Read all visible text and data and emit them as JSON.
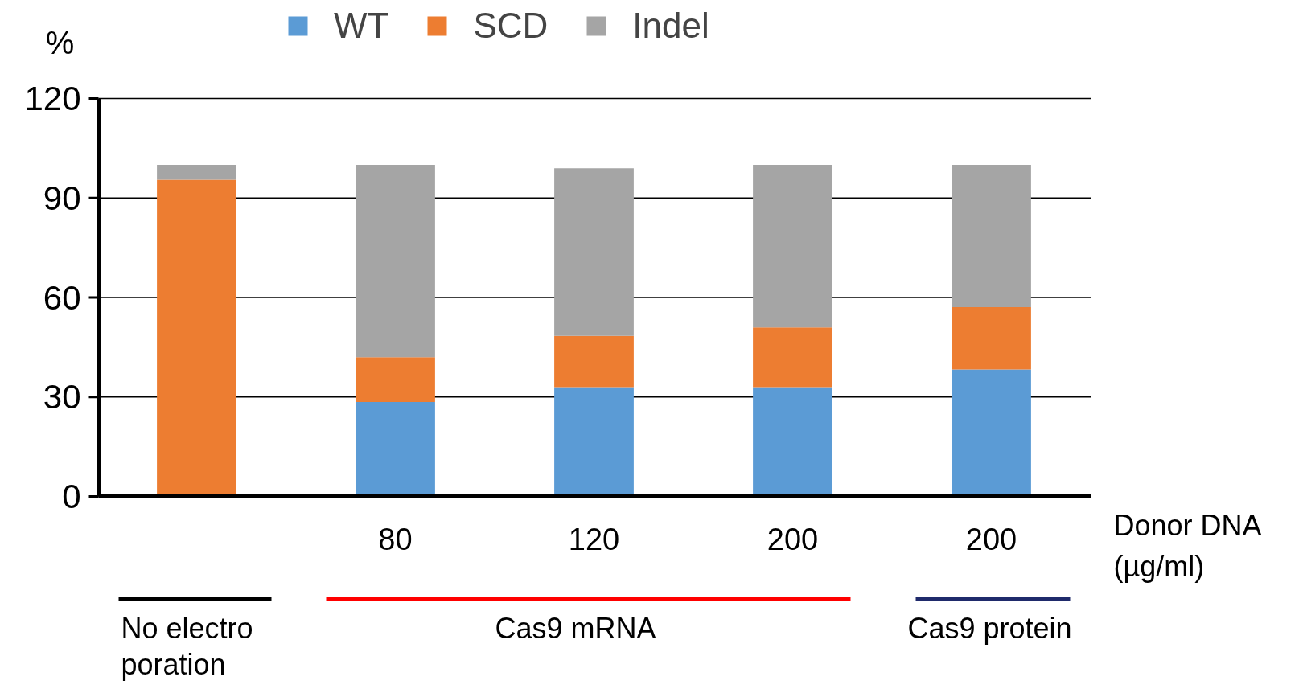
{
  "chart_data": {
    "type": "bar",
    "stacked": true,
    "categories": [
      null,
      "80",
      "120",
      "200",
      "200"
    ],
    "xlabel": "Donor DNA\n(µg/ml)",
    "ylabel": "%",
    "series": [
      {
        "name": "WT",
        "color": "#5b9bd5",
        "values": [
          0,
          28.5,
          33,
          33,
          38.3
        ]
      },
      {
        "name": "SCD",
        "color": "#ed7d31",
        "values": [
          95.5,
          13.5,
          15.4,
          18,
          18.8
        ]
      },
      {
        "name": "Indel",
        "color": "#a5a5a5",
        "values": [
          4.5,
          58,
          50.6,
          49,
          42.9
        ]
      }
    ],
    "ylim": [
      0,
      120
    ],
    "yticks": [
      0,
      30,
      60,
      90,
      120
    ],
    "grid": "y",
    "legend": "top",
    "annotations": [
      "No electro\nporation",
      "Cas9 mRNA",
      "Cas9 protein"
    ]
  }
}
